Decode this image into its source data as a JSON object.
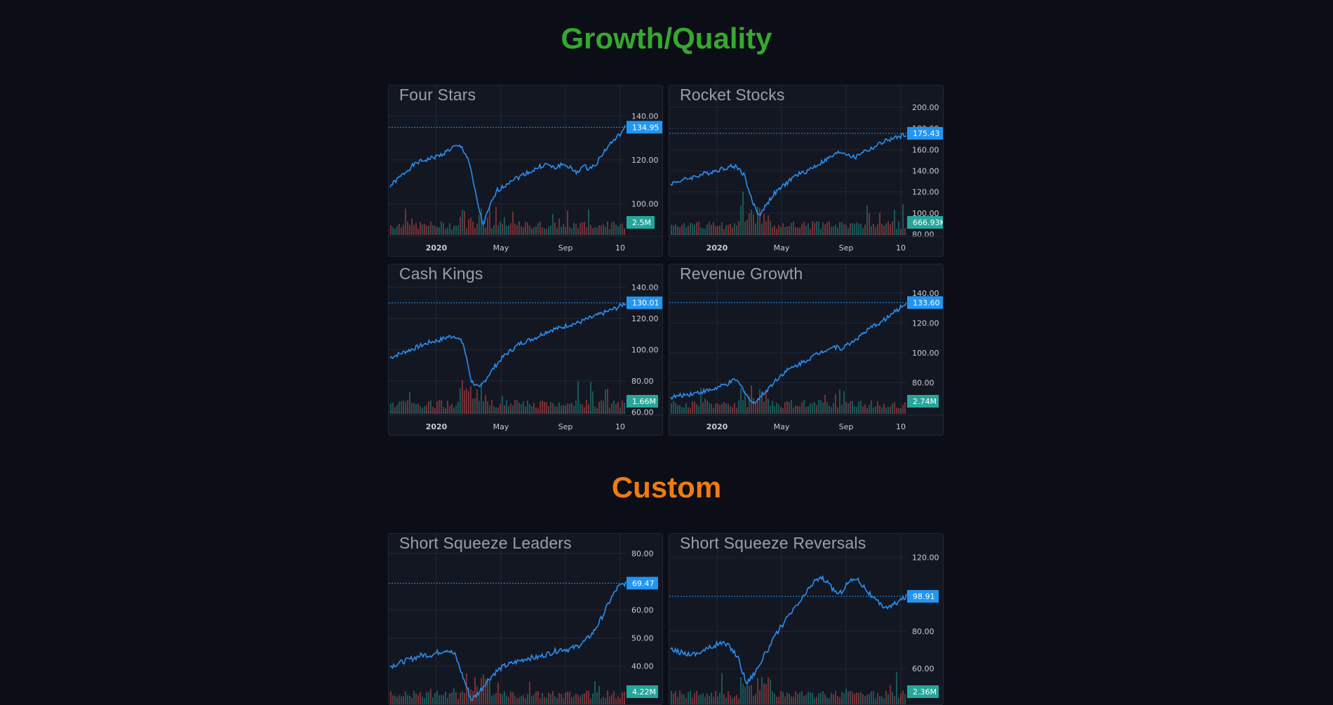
{
  "sections": [
    {
      "title": "Growth/Quality",
      "color": "#36a82f",
      "cards": [
        {
          "title": "Four Stars",
          "price_label": "134.95",
          "volume_label": "2.5M",
          "y_ticks": [
            "140.00",
            "120.00",
            "100.00"
          ],
          "x_ticks": [
            "2020",
            "May",
            "Sep",
            "10"
          ],
          "chart_data": {
            "type": "line",
            "series": [
              {
                "values": [
                  108,
                  111,
                  114,
                  117,
                  119,
                  120,
                  121,
                  122,
                  124,
                  126,
                  126,
                  120,
                  104,
                  90,
                  99,
                  106,
                  108,
                  111,
                  112,
                  114,
                  115,
                  117,
                  118,
                  116,
                  118,
                  117,
                  114,
                  117,
                  116,
                  119,
                  124,
                  128,
                  131,
                  135
                ]
              }
            ],
            "ylim": [
              85,
              145
            ],
            "price": 134.95,
            "volume_level": 2.5
          }
        },
        {
          "title": "Rocket Stocks",
          "price_label": "175.43",
          "volume_label": "666.93K",
          "y_ticks": [
            "200.00",
            "180.00",
            "160.00",
            "140.00",
            "120.00",
            "100.00",
            "80.00"
          ],
          "x_ticks": [
            "2020",
            "May",
            "Sep",
            "10"
          ],
          "chart_data": {
            "type": "line",
            "series": [
              {
                "values": [
                  128,
                  130,
                  132,
                  134,
                  136,
                  138,
                  140,
                  142,
                  144,
                  144,
                  136,
                  112,
                  98,
                  108,
                  118,
                  124,
                  130,
                  136,
                  138,
                  142,
                  146,
                  150,
                  154,
                  158,
                  156,
                  152,
                  158,
                  160,
                  164,
                  168,
                  170,
                  172,
                  175
                ]
              }
            ],
            "ylim": [
              78,
              202
            ],
            "price": 175.43,
            "volume_level": 0.67
          }
        },
        {
          "title": "Cash Kings",
          "price_label": "130.01",
          "volume_label": "1.66M",
          "y_ticks": [
            "140.00",
            "120.00",
            "100.00",
            "80.00",
            "60.00"
          ],
          "x_ticks": [
            "2020",
            "May",
            "Sep",
            "10"
          ],
          "chart_data": {
            "type": "line",
            "series": [
              {
                "values": [
                  95,
                  97,
                  99,
                  101,
                  103,
                  105,
                  106,
                  108,
                  109,
                  104,
                  80,
                  75,
                  83,
                  90,
                  96,
                  100,
                  104,
                  106,
                  108,
                  111,
                  113,
                  114,
                  116,
                  117,
                  119,
                  121,
                  123,
                  125,
                  127,
                  130
                ]
              }
            ],
            "ylim": [
              58,
              142
            ],
            "price": 130.01,
            "volume_level": 1.66
          }
        },
        {
          "title": "Revenue Growth",
          "price_label": "133.60",
          "volume_label": "2.74M",
          "y_ticks": [
            "140.00",
            "120.00",
            "100.00",
            "80.00"
          ],
          "x_ticks": [
            "2020",
            "May",
            "Sep",
            "10"
          ],
          "chart_data": {
            "type": "line",
            "series": [
              {
                "values": [
                  70,
                  71,
                  72,
                  73,
                  74,
                  75,
                  77,
                  79,
                  82,
                  75,
                  66,
                  70,
                  76,
                  82,
                  87,
                  90,
                  93,
                  96,
                  99,
                  102,
                  104,
                  103,
                  106,
                  110,
                  114,
                  118,
                  121,
                  125,
                  129,
                  133.6
                ]
              }
            ],
            "ylim": [
              58,
              146
            ],
            "price": 133.6,
            "volume_level": 2.74
          }
        }
      ]
    },
    {
      "title": "Custom",
      "color": "#f07b11",
      "cards": [
        {
          "title": "Short Squeeze Leaders",
          "price_label": "69.47",
          "volume_label": "4.22M",
          "y_ticks": [
            "80.00",
            "60.00",
            "50.00",
            "40.00",
            "30.00"
          ],
          "x_ticks": [],
          "chart_data": {
            "type": "line",
            "series": [
              {
                "values": [
                  40,
                  41,
                  42,
                  43,
                  44,
                  44,
                  45,
                  46,
                  44,
                  36,
                  28,
                  31,
                  35,
                  38,
                  40,
                  41,
                  42,
                  43,
                  43,
                  44,
                  45,
                  46,
                  46,
                  47,
                  49,
                  52,
                  57,
                  63,
                  68,
                  69.5
                ]
              }
            ],
            "ylim": [
              26,
              80
            ],
            "price": 69.47,
            "volume_level": 4.22
          }
        },
        {
          "title": "Short Squeeze Reversals",
          "price_label": "98.91",
          "volume_label": "2.36M",
          "y_ticks": [
            "120.00",
            "80.00",
            "60.00"
          ],
          "x_ticks": [],
          "chart_data": {
            "type": "line",
            "series": [
              {
                "values": [
                  70,
                  69,
                  68,
                  68,
                  70,
                  72,
                  74,
                  72,
                  66,
                  52,
                  58,
                  66,
                  74,
                  82,
                  88,
                  94,
                  100,
                  107,
                  109,
                  104,
                  100,
                  106,
                  109,
                  104,
                  98,
                  94,
                  93,
                  96,
                  98.9
                ]
              }
            ],
            "ylim": [
              40,
              122
            ],
            "price": 98.91,
            "volume_level": 2.36
          }
        }
      ]
    }
  ]
}
